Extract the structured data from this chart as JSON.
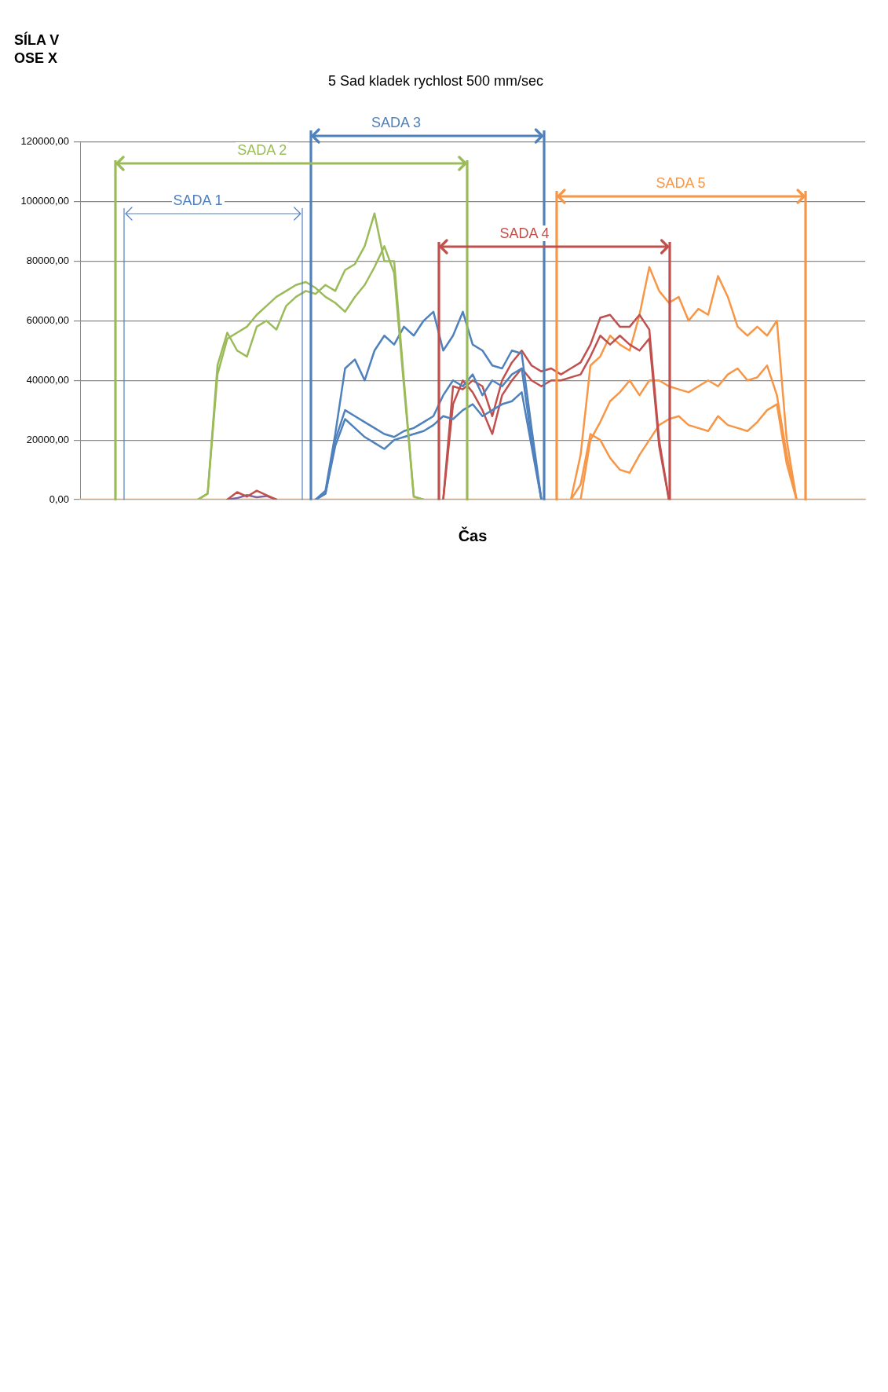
{
  "chart_data": {
    "type": "line",
    "title": "5 Sad kladek rychlost 500 mm/sec",
    "xlabel": "Čas",
    "ylabel": "SÍLA V OSE X",
    "categories": [
      null,
      null,
      null,
      null,
      null,
      null,
      null,
      null,
      null,
      null,
      null,
      null,
      null,
      null,
      null,
      null,
      null,
      null,
      null,
      null,
      null,
      null,
      null,
      null,
      null,
      null,
      null,
      null,
      null,
      null,
      null,
      null,
      null,
      null,
      null,
      null,
      null,
      null,
      null,
      null,
      null,
      null,
      null,
      null,
      null,
      null,
      null,
      null,
      null,
      null,
      null,
      null,
      null,
      null,
      null,
      null,
      null,
      null,
      null,
      null,
      null,
      null,
      null,
      null,
      null,
      null,
      null,
      null,
      null,
      null,
      null,
      null,
      null,
      null,
      null,
      null,
      null,
      null,
      null,
      null,
      null
    ],
    "ylim": [
      0,
      120000
    ],
    "yticks": [
      {
        "value": 0,
        "label": "0,00"
      },
      {
        "value": 20000,
        "label": "20000,00"
      },
      {
        "value": 40000,
        "label": "40000,00"
      },
      {
        "value": 60000,
        "label": "60000,00"
      },
      {
        "value": 80000,
        "label": "80000,00"
      },
      {
        "value": 100000,
        "label": "100000,00"
      },
      {
        "value": 120000,
        "label": "120000,00"
      }
    ],
    "grid": "y",
    "legend": false,
    "marker": "none",
    "line_style": "solid",
    "annotations": [
      "SADA 1",
      "SADA 2",
      "SADA 3",
      "SADA 4",
      "SADA 5"
    ],
    "series": [
      {
        "color": "#9bbb59",
        "values": [
          null,
          null,
          null,
          null,
          null,
          null,
          null,
          null,
          null,
          null,
          null,
          null,
          0,
          2000,
          45000,
          56000,
          50000,
          48000,
          58000,
          60000,
          57000,
          65000,
          68000,
          70000,
          69000,
          72000,
          70000,
          77000,
          79000,
          85000,
          96000,
          80000,
          80000,
          40000,
          1000,
          0,
          null,
          null,
          null,
          null,
          null,
          null,
          null,
          null,
          null,
          null,
          null,
          null,
          null,
          null,
          null,
          null,
          null,
          null,
          null,
          null,
          null,
          null,
          null,
          null,
          null,
          null,
          null,
          null,
          null,
          null,
          null,
          null,
          null,
          null,
          null,
          null,
          null,
          null,
          null,
          null,
          null,
          null,
          null,
          null,
          null
        ]
      },
      {
        "color": "#9bbb59",
        "values": [
          null,
          null,
          null,
          null,
          null,
          null,
          null,
          null,
          null,
          null,
          null,
          null,
          0,
          2000,
          42000,
          54000,
          56000,
          58000,
          62000,
          65000,
          68000,
          70000,
          72000,
          73000,
          71000,
          68000,
          66000,
          63000,
          68000,
          72000,
          78000,
          85000,
          76000,
          38000,
          1000,
          0,
          null,
          null,
          null,
          null,
          null,
          null,
          null,
          null,
          null,
          null,
          null,
          null,
          null,
          null,
          null,
          null,
          null,
          null,
          null,
          null,
          null,
          null,
          null,
          null,
          null,
          null,
          null,
          null,
          null,
          null,
          null,
          null,
          null,
          null,
          null,
          null,
          null,
          null,
          null,
          null,
          null,
          null,
          null,
          null,
          null
        ]
      },
      {
        "color": "#4f81bd",
        "values": [
          null,
          null,
          null,
          null,
          null,
          null,
          null,
          null,
          null,
          null,
          null,
          null,
          null,
          null,
          null,
          null,
          null,
          null,
          null,
          null,
          null,
          null,
          null,
          null,
          0,
          3000,
          22000,
          44000,
          47000,
          40000,
          50000,
          55000,
          52000,
          58000,
          55000,
          60000,
          63000,
          50000,
          55000,
          63000,
          52000,
          50000,
          45000,
          44000,
          50000,
          49000,
          24000,
          0,
          null,
          null,
          null,
          null,
          null,
          null,
          null,
          null,
          null,
          null,
          null,
          null,
          null,
          null,
          null,
          null,
          null,
          null,
          null,
          null,
          null,
          null,
          null,
          null,
          null,
          null,
          null,
          null,
          null,
          null,
          null,
          null,
          null
        ]
      },
      {
        "color": "#4f81bd",
        "values": [
          null,
          null,
          null,
          null,
          null,
          null,
          null,
          null,
          null,
          null,
          null,
          null,
          null,
          null,
          null,
          null,
          null,
          null,
          null,
          null,
          null,
          null,
          null,
          null,
          0,
          2000,
          20000,
          30000,
          28000,
          26000,
          24000,
          22000,
          21000,
          23000,
          24000,
          26000,
          28000,
          35000,
          40000,
          38000,
          42000,
          35000,
          40000,
          38000,
          42000,
          44000,
          20000,
          0,
          null,
          null,
          null,
          null,
          null,
          null,
          null,
          null,
          null,
          null,
          null,
          null,
          null,
          null,
          null,
          null,
          null,
          null,
          null,
          null,
          null,
          null,
          null,
          null,
          null,
          null,
          null,
          null,
          null,
          null,
          null,
          null,
          null
        ]
      },
      {
        "color": "#4f81bd",
        "values": [
          null,
          null,
          null,
          null,
          null,
          null,
          null,
          null,
          null,
          null,
          null,
          null,
          null,
          null,
          null,
          null,
          null,
          null,
          null,
          null,
          null,
          null,
          null,
          null,
          0,
          2000,
          18000,
          27000,
          24000,
          21000,
          19000,
          17000,
          20000,
          21000,
          22000,
          23000,
          25000,
          28000,
          27000,
          30000,
          32000,
          28000,
          30000,
          32000,
          33000,
          36000,
          18000,
          0,
          null,
          null,
          null,
          null,
          null,
          null,
          null,
          null,
          null,
          null,
          null,
          null,
          null,
          null,
          null,
          null,
          null,
          null,
          null,
          null,
          null,
          null,
          null,
          null,
          null,
          null,
          null,
          null,
          null,
          null,
          null,
          null,
          null
        ]
      },
      {
        "color": "#c0504d",
        "values": [
          null,
          null,
          null,
          null,
          null,
          null,
          null,
          null,
          null,
          null,
          null,
          null,
          null,
          null,
          null,
          null,
          null,
          null,
          null,
          null,
          null,
          null,
          null,
          null,
          null,
          null,
          null,
          null,
          null,
          null,
          null,
          null,
          null,
          null,
          null,
          null,
          null,
          0,
          38000,
          37000,
          40000,
          38000,
          28000,
          40000,
          46000,
          50000,
          45000,
          43000,
          44000,
          42000,
          44000,
          46000,
          52000,
          61000,
          62000,
          58000,
          58000,
          62000,
          57000,
          20000,
          0,
          null,
          null,
          null,
          null,
          null,
          null,
          null,
          null,
          null,
          null,
          null,
          null,
          null,
          null,
          null,
          null,
          null,
          null,
          null,
          null
        ]
      },
      {
        "color": "#c0504d",
        "values": [
          null,
          null,
          null,
          null,
          null,
          null,
          null,
          null,
          null,
          null,
          null,
          null,
          null,
          null,
          null,
          null,
          null,
          null,
          null,
          null,
          null,
          null,
          null,
          null,
          null,
          null,
          null,
          null,
          null,
          null,
          null,
          null,
          null,
          null,
          null,
          null,
          null,
          0,
          32000,
          40000,
          36000,
          30000,
          22000,
          35000,
          40000,
          44000,
          40000,
          38000,
          40000,
          40000,
          41000,
          42000,
          48000,
          55000,
          52000,
          55000,
          52000,
          50000,
          54000,
          18000,
          0,
          null,
          null,
          null,
          null,
          null,
          null,
          null,
          null,
          null,
          null,
          null,
          null,
          null,
          null,
          null,
          null,
          null,
          null,
          null,
          null
        ]
      },
      {
        "color": "#f79646",
        "values": [
          null,
          null,
          null,
          null,
          null,
          null,
          null,
          null,
          null,
          null,
          null,
          null,
          null,
          null,
          null,
          null,
          null,
          null,
          null,
          null,
          null,
          null,
          null,
          null,
          null,
          null,
          null,
          null,
          null,
          null,
          null,
          null,
          null,
          null,
          null,
          null,
          null,
          null,
          null,
          null,
          null,
          null,
          null,
          null,
          null,
          null,
          null,
          null,
          null,
          null,
          0,
          15000,
          45000,
          48000,
          55000,
          52000,
          50000,
          62000,
          78000,
          70000,
          66000,
          68000,
          60000,
          64000,
          62000,
          75000,
          68000,
          58000,
          55000,
          58000,
          55000,
          60000,
          20000,
          0,
          null,
          null,
          null,
          null,
          null,
          null,
          null
        ]
      },
      {
        "color": "#f79646",
        "values": [
          null,
          null,
          null,
          null,
          null,
          null,
          null,
          null,
          null,
          null,
          null,
          null,
          null,
          null,
          null,
          null,
          null,
          null,
          null,
          null,
          null,
          null,
          null,
          null,
          null,
          null,
          null,
          null,
          null,
          null,
          null,
          null,
          null,
          null,
          null,
          null,
          null,
          null,
          null,
          null,
          null,
          null,
          null,
          null,
          null,
          null,
          null,
          null,
          null,
          null,
          0,
          0,
          20000,
          26000,
          33000,
          36000,
          40000,
          35000,
          40000,
          40000,
          38000,
          37000,
          36000,
          38000,
          40000,
          38000,
          42000,
          44000,
          40000,
          41000,
          45000,
          35000,
          15000,
          0,
          null,
          null,
          null,
          null,
          null,
          null,
          null
        ]
      },
      {
        "color": "#f79646",
        "values": [
          null,
          null,
          null,
          null,
          null,
          null,
          null,
          null,
          null,
          null,
          null,
          null,
          null,
          null,
          null,
          null,
          null,
          null,
          null,
          null,
          null,
          null,
          null,
          null,
          null,
          null,
          null,
          null,
          null,
          null,
          null,
          null,
          null,
          null,
          null,
          null,
          null,
          null,
          null,
          null,
          null,
          null,
          null,
          null,
          null,
          null,
          null,
          null,
          null,
          null,
          0,
          5000,
          22000,
          20000,
          14000,
          10000,
          9000,
          15000,
          20000,
          25000,
          27000,
          28000,
          25000,
          24000,
          23000,
          28000,
          25000,
          24000,
          23000,
          26000,
          30000,
          32000,
          12000,
          0,
          null,
          null,
          null,
          null,
          null,
          null,
          null
        ]
      },
      {
        "color": "#c0504d",
        "values": [
          null,
          null,
          null,
          null,
          null,
          null,
          null,
          null,
          null,
          null,
          null,
          null,
          null,
          null,
          null,
          0,
          2500,
          1000,
          3000,
          1500,
          0,
          null,
          null,
          null,
          null,
          null,
          null,
          null,
          null,
          null,
          null,
          null,
          null,
          null,
          null,
          null,
          null,
          null,
          null,
          null,
          null,
          null,
          null,
          null,
          null,
          null,
          null,
          null,
          null,
          null,
          null,
          null,
          null,
          null,
          null,
          null,
          null,
          null,
          null,
          null,
          null,
          null,
          null,
          null,
          null,
          null,
          null,
          null,
          null,
          null,
          null,
          null,
          null,
          null,
          null,
          null,
          null,
          null,
          null,
          null,
          null
        ]
      },
      {
        "color": "#8064a2",
        "values": [
          null,
          null,
          null,
          null,
          null,
          null,
          null,
          null,
          null,
          null,
          null,
          null,
          null,
          null,
          null,
          0,
          500,
          1500,
          800,
          1200,
          0,
          null,
          null,
          null,
          null,
          null,
          null,
          null,
          null,
          null,
          null,
          null,
          null,
          null,
          null,
          null,
          null,
          null,
          null,
          null,
          null,
          null,
          null,
          null,
          null,
          null,
          null,
          null,
          null,
          null,
          null,
          null,
          null,
          null,
          null,
          null,
          null,
          null,
          null,
          null,
          null,
          null,
          null,
          null,
          null,
          null,
          null,
          null,
          null,
          null,
          null,
          null,
          null,
          null,
          null,
          null,
          null,
          null,
          null,
          null,
          null
        ]
      },
      {
        "color": "#f79646",
        "values": [
          0,
          0,
          0,
          0,
          0,
          0,
          0,
          0,
          0,
          0,
          0,
          0,
          0,
          0,
          0,
          0,
          0,
          0,
          0,
          0,
          0,
          0,
          0,
          0,
          0,
          0,
          0,
          0,
          0,
          0,
          0,
          0,
          0,
          0,
          0,
          0,
          0,
          0,
          0,
          0,
          0,
          0,
          0,
          0,
          0,
          0,
          0,
          0,
          0,
          0,
          0,
          0,
          0,
          0,
          0,
          0,
          0,
          0,
          0,
          0,
          0,
          0,
          0,
          0,
          0,
          0,
          0,
          0,
          0,
          0,
          0,
          0,
          0,
          0,
          0,
          0,
          0,
          0,
          0,
          0,
          0
        ]
      }
    ]
  }
}
